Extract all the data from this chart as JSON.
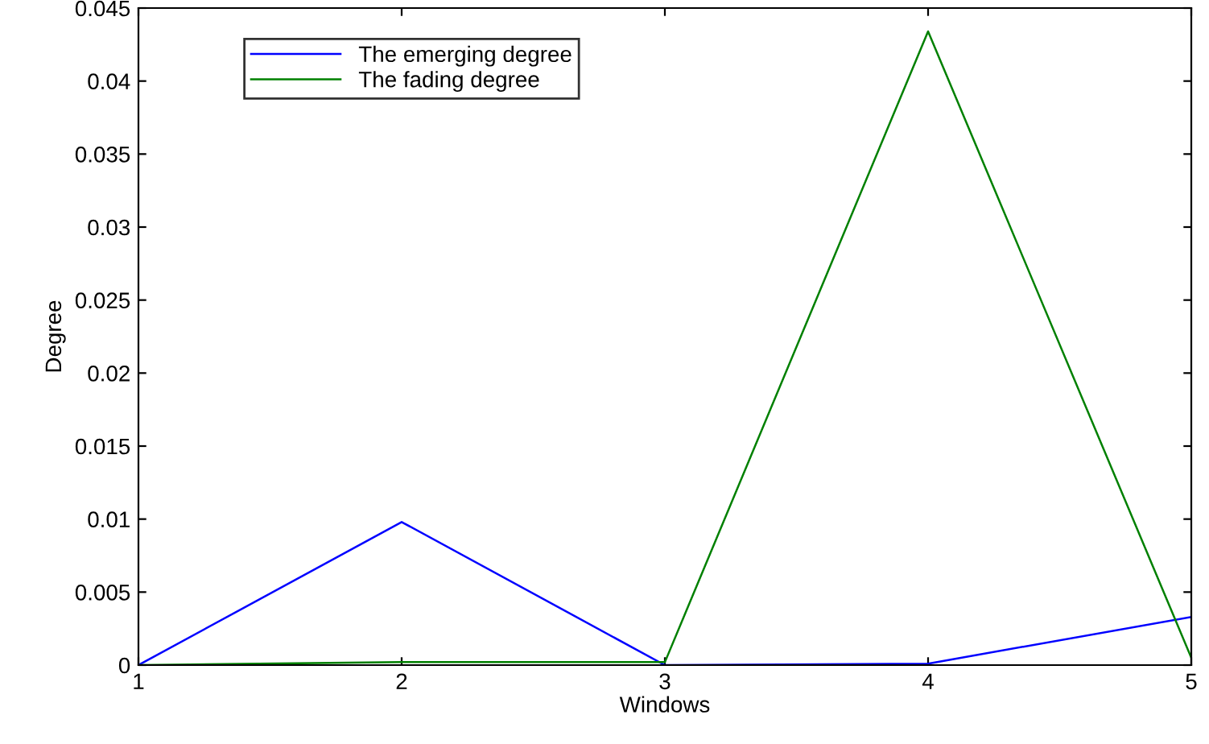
{
  "chart_data": {
    "type": "line",
    "xlabel": "Windows",
    "ylabel": "Degree",
    "x": [
      1,
      2,
      3,
      4,
      5
    ],
    "series": [
      {
        "name": "The emerging degree",
        "color": "#0000ff",
        "values": [
          0,
          0.0098,
          0,
          0.0001,
          0.0033
        ]
      },
      {
        "name": "The fading degree",
        "color": "#008000",
        "values": [
          0,
          0.0002,
          0.0002,
          0.0434,
          0.0005
        ]
      }
    ],
    "xlim": [
      1,
      5
    ],
    "ylim": [
      0,
      0.045
    ],
    "xticks": [
      1,
      2,
      3,
      4,
      5
    ],
    "yticks": [
      0,
      0.005,
      0.01,
      0.015,
      0.02,
      0.025,
      0.03,
      0.035,
      0.04,
      0.045
    ],
    "legend": "top left",
    "grid": false,
    "marker": "none",
    "line_style": "solid"
  }
}
